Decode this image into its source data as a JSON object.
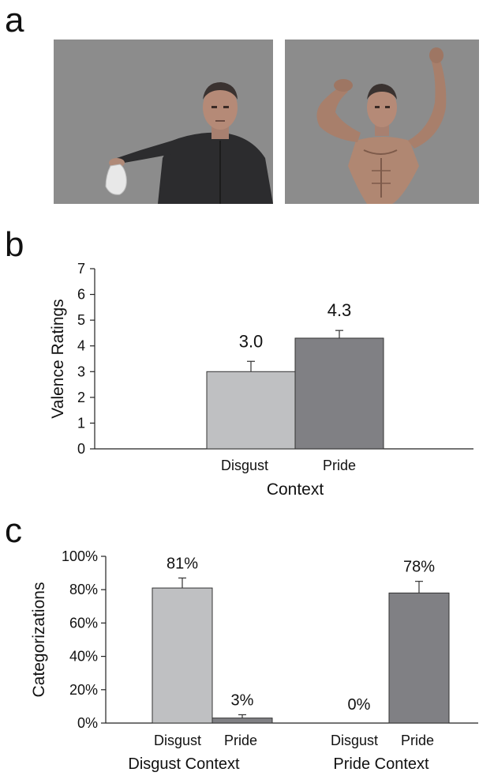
{
  "panels": {
    "a": "a",
    "b": "b",
    "c": "c"
  },
  "photos": [
    {
      "name": "man-holding-dirty-underwear-photo"
    },
    {
      "name": "man-flexing-muscular-body-photo"
    }
  ],
  "colors": {
    "disgust_bar": "#bfc0c2",
    "pride_bar": "#808084",
    "photo_bg": "#8c8c8c",
    "axis": "#222222"
  },
  "chart_data": [
    {
      "type": "bar",
      "categories": [
        "Disgust",
        "Pride"
      ],
      "values": [
        3.0,
        4.3
      ],
      "error": [
        0.4,
        0.3
      ],
      "data_labels": [
        "3.0",
        "4.3"
      ],
      "title": "",
      "xlabel": "Context",
      "ylabel": "Valence Ratings",
      "ylim": [
        0,
        7
      ],
      "yticks": [
        "0",
        "1",
        "2",
        "3",
        "4",
        "5",
        "6",
        "7"
      ],
      "grid": false
    },
    {
      "type": "bar",
      "groups": [
        "Disgust Context",
        "Pride Context"
      ],
      "categories": [
        "Disgust",
        "Pride"
      ],
      "series": [
        {
          "values": [
            81,
            0
          ],
          "error": [
            6,
            0
          ]
        },
        {
          "values": [
            3,
            78
          ],
          "error": [
            2,
            7
          ]
        }
      ],
      "data_labels": [
        [
          "81%",
          "0%"
        ],
        [
          "3%",
          "78%"
        ]
      ],
      "title": "",
      "xlabel": "",
      "ylabel": "Categorizations",
      "ylim": [
        0,
        100
      ],
      "yticks": [
        "0%",
        "20%",
        "40%",
        "60%",
        "80%",
        "100%"
      ],
      "grid": false
    }
  ]
}
